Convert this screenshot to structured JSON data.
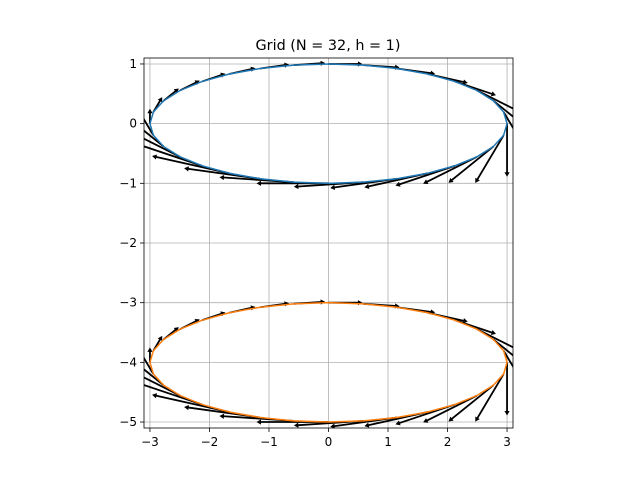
{
  "chart_data": {
    "type": "line",
    "title": "Grid (N = 32, h = 1)",
    "xlabel": "",
    "ylabel": "",
    "xlim": [
      -3.1,
      3.1
    ],
    "ylim": [
      -5.1,
      1.1
    ],
    "xticks": [
      -3,
      -2,
      -1,
      0,
      1,
      2,
      3
    ],
    "xtick_labels": [
      "−3",
      "−2",
      "−1",
      "0",
      "1",
      "2",
      "3"
    ],
    "yticks": [
      1,
      0,
      -1,
      -2,
      -3,
      -4,
      -5
    ],
    "ytick_labels": [
      "1",
      "0",
      "−1",
      "−2",
      "−3",
      "−4",
      "−5"
    ],
    "grid": true,
    "aspect": "equal",
    "series": [
      {
        "color": "#1f77b4",
        "shape": "ellipse",
        "center": [
          0,
          0
        ],
        "semi_axes": [
          3,
          1
        ],
        "n_points": 32,
        "vectors": "tangent, length proportional to index"
      },
      {
        "color": "#ff7f0e",
        "shape": "ellipse",
        "center": [
          0,
          -4
        ],
        "semi_axes": [
          3,
          1
        ],
        "n_points": 32,
        "vectors": "tangent, length proportional to index"
      }
    ]
  }
}
